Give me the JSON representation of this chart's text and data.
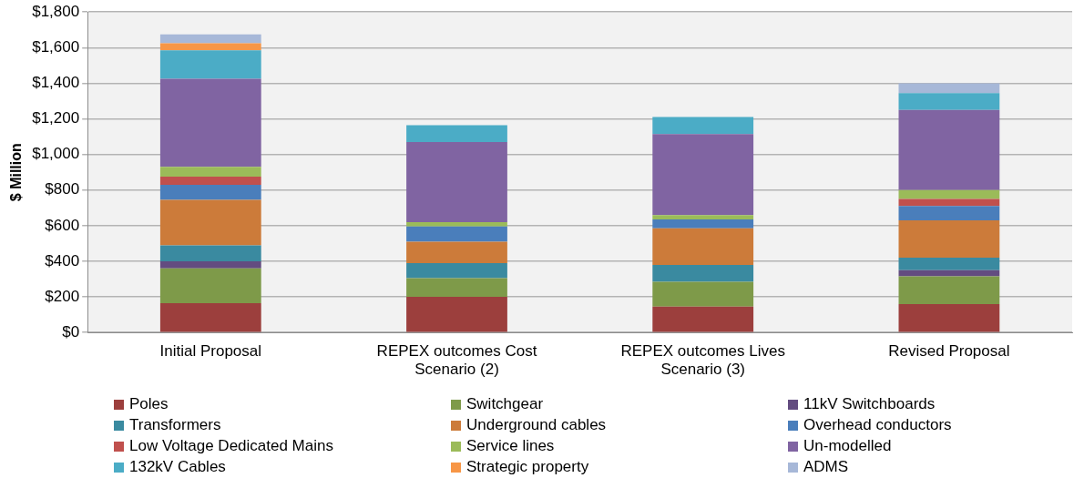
{
  "chart_data": {
    "type": "bar",
    "stacked": true,
    "ylabel": "$ Million",
    "categories": [
      "Initial Proposal",
      "REPEX outcomes Cost Scenario (2)",
      "REPEX outcomes Lives Scenario (3)",
      "Revised Proposal"
    ],
    "ylim": [
      0,
      1800
    ],
    "yticks": [
      {
        "value": 0,
        "label": "$0"
      },
      {
        "value": 200,
        "label": "$200"
      },
      {
        "value": 400,
        "label": "$400"
      },
      {
        "value": 600,
        "label": "$600"
      },
      {
        "value": 800,
        "label": "$800"
      },
      {
        "value": 1000,
        "label": "$1,000"
      },
      {
        "value": 1200,
        "label": "$1,200"
      },
      {
        "value": 1400,
        "label": "$1,400"
      },
      {
        "value": 1600,
        "label": "$1,600"
      },
      {
        "value": 1800,
        "label": "$1,800"
      }
    ],
    "grid": "y",
    "legend": "bottom",
    "series": [
      {
        "name": "Poles",
        "color": "#9c3f3d",
        "values": [
          165,
          200,
          145,
          160
        ]
      },
      {
        "name": "Switchgear",
        "color": "#7e9a49",
        "values": [
          195,
          105,
          140,
          155
        ]
      },
      {
        "name": "11kV Switchboards",
        "color": "#634c80",
        "values": [
          40,
          0,
          0,
          35
        ]
      },
      {
        "name": "Transformers",
        "color": "#3a8aa0",
        "values": [
          90,
          85,
          95,
          70
        ]
      },
      {
        "name": "Underground cables",
        "color": "#cc7b3a",
        "values": [
          255,
          120,
          205,
          210
        ]
      },
      {
        "name": "Overhead conductors",
        "color": "#4a7ebb",
        "values": [
          85,
          85,
          50,
          80
        ]
      },
      {
        "name": "Low Voltage Dedicated Mains",
        "color": "#c0504d",
        "values": [
          45,
          0,
          0,
          40
        ]
      },
      {
        "name": "Service lines",
        "color": "#9bbb59",
        "values": [
          55,
          25,
          25,
          50
        ]
      },
      {
        "name": "Un-modelled",
        "color": "#8064a2",
        "values": [
          495,
          450,
          455,
          450
        ]
      },
      {
        "name": "132kV Cables",
        "color": "#4bacc6",
        "values": [
          160,
          95,
          95,
          95
        ]
      },
      {
        "name": "Strategic property",
        "color": "#f79646",
        "values": [
          40,
          0,
          0,
          0
        ]
      },
      {
        "name": "ADMS",
        "color": "#a7b8d8",
        "values": [
          50,
          0,
          0,
          55
        ]
      }
    ]
  }
}
